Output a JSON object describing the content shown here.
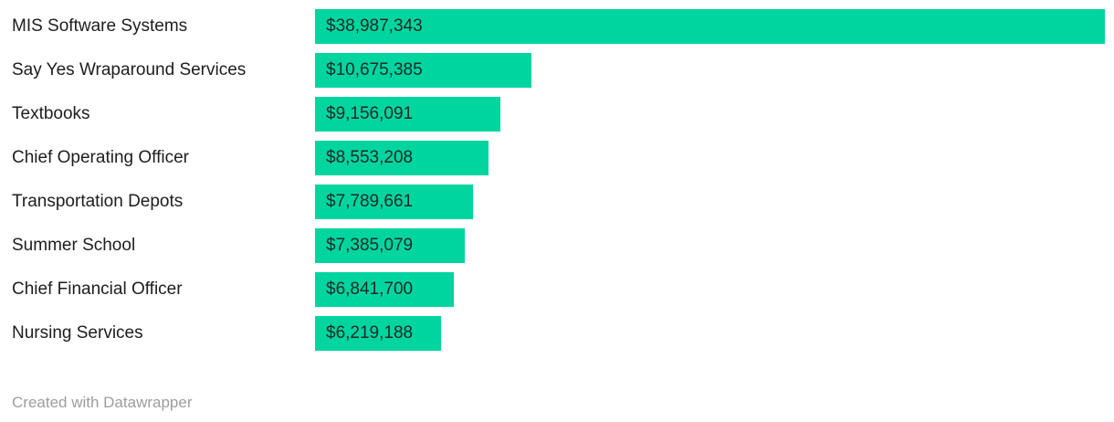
{
  "chart_data": {
    "type": "bar",
    "orientation": "horizontal",
    "title": "",
    "categories": [
      "MIS Software Systems",
      "Say Yes Wraparound Services",
      "Textbooks",
      "Chief Operating Officer",
      "Transportation Depots",
      "Summer School",
      "Chief Financial Officer",
      "Nursing Services"
    ],
    "values": [
      38987343,
      10675385,
      9156091,
      8553208,
      7789661,
      7385079,
      6841700,
      6219188
    ],
    "value_labels": [
      "$38,987,343",
      "$10,675,385",
      "$9,156,091",
      "$8,553,208",
      "$7,789,661",
      "$7,385,079",
      "$6,841,700",
      "$6,219,188"
    ],
    "xlim": [
      0,
      38987343
    ],
    "grid": false,
    "legend": "none",
    "value_label_position": "inside-start",
    "bar_color": "#00d5a0",
    "label_color": "#1d1d1d",
    "value_label_color": "#1f2a27"
  },
  "footer": {
    "credit_text": "Created with Datawrapper",
    "credit_color": "#9d9d9d"
  }
}
